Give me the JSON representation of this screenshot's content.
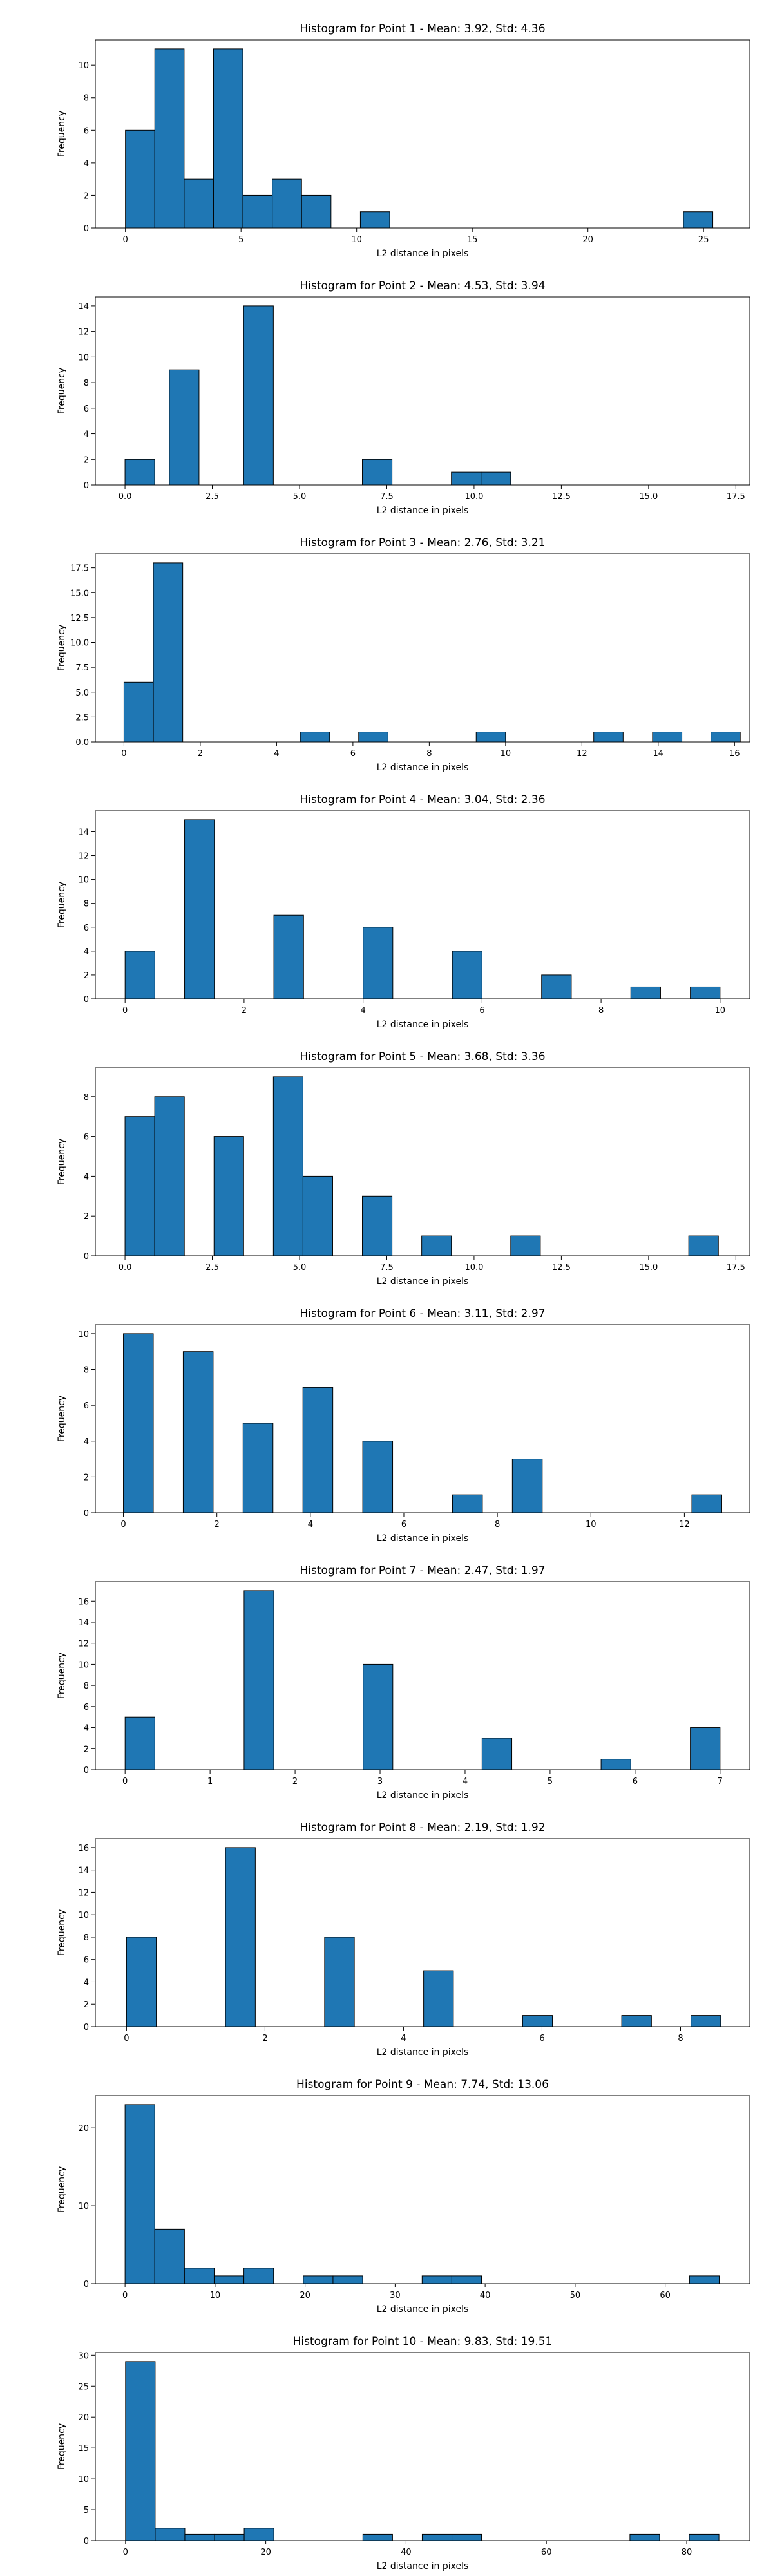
{
  "chart_data": [
    {
      "type": "bar",
      "title": "Histogram for Point 1 - Mean: 3.92, Std: 4.36",
      "xlabel": "L2 distance in pixels",
      "ylabel": "Frequency",
      "bar_color": "#1f77b4",
      "edge_color": "#000000",
      "xlim": [
        -1.3,
        27.0
      ],
      "ylim": [
        0,
        11.55
      ],
      "xticks": [
        0,
        5,
        10,
        15,
        20,
        25
      ],
      "xtick_labels": [
        "0",
        "5",
        "10",
        "15",
        "20",
        "25"
      ],
      "yticks": [
        0,
        2,
        4,
        6,
        8,
        10
      ],
      "ytick_labels": [
        "0",
        "2",
        "4",
        "6",
        "8",
        "10"
      ],
      "bin_width": 1.27,
      "bins": [
        [
          0,
          6
        ],
        [
          1.27,
          11
        ],
        [
          2.54,
          3
        ],
        [
          3.81,
          11
        ],
        [
          5.08,
          2
        ],
        [
          6.35,
          3
        ],
        [
          7.62,
          2
        ],
        [
          10.16,
          1
        ],
        [
          24.13,
          1
        ]
      ]
    },
    {
      "type": "bar",
      "title": "Histogram for Point 2 - Mean: 4.53, Std: 3.94",
      "xlabel": "L2 distance in pixels",
      "ylabel": "Frequency",
      "bar_color": "#1f77b4",
      "edge_color": "#000000",
      "xlim": [
        -0.85,
        17.9
      ],
      "ylim": [
        0,
        14.7
      ],
      "xticks": [
        0,
        2.5,
        5,
        7.5,
        10,
        12.5,
        15,
        17.5
      ],
      "xtick_labels": [
        "0.0",
        "2.5",
        "5.0",
        "7.5",
        "10.0",
        "12.5",
        "15.0",
        "17.5"
      ],
      "yticks": [
        0,
        2,
        4,
        6,
        8,
        10,
        12,
        14
      ],
      "ytick_labels": [
        "0",
        "2",
        "4",
        "6",
        "8",
        "10",
        "12",
        "14"
      ],
      "bin_width": 0.85,
      "bins": [
        [
          0,
          2
        ],
        [
          1.27,
          9
        ],
        [
          3.4,
          14
        ],
        [
          6.8,
          2
        ],
        [
          9.35,
          1
        ],
        [
          10.2,
          1
        ]
      ]
    },
    {
      "type": "bar",
      "title": "Histogram for Point 3 - Mean: 2.76, Std: 3.21",
      "xlabel": "L2 distance in pixels",
      "ylabel": "Frequency",
      "bar_color": "#1f77b4",
      "edge_color": "#000000",
      "xlim": [
        -0.75,
        16.4
      ],
      "ylim": [
        0,
        18.9
      ],
      "xticks": [
        0,
        2,
        4,
        6,
        8,
        10,
        12,
        14,
        16
      ],
      "xtick_labels": [
        "0",
        "2",
        "4",
        "6",
        "8",
        "10",
        "12",
        "14",
        "16"
      ],
      "yticks": [
        0,
        2.5,
        5,
        7.5,
        10,
        12.5,
        15,
        17.5
      ],
      "ytick_labels": [
        "0.0",
        "2.5",
        "5.0",
        "7.5",
        "10.0",
        "12.5",
        "15.0",
        "17.5"
      ],
      "bin_width": 0.77,
      "bins": [
        [
          0,
          6
        ],
        [
          0.77,
          18
        ],
        [
          4.62,
          1
        ],
        [
          6.15,
          1
        ],
        [
          9.23,
          1
        ],
        [
          12.31,
          1
        ],
        [
          13.85,
          1
        ],
        [
          15.38,
          1
        ]
      ]
    },
    {
      "type": "bar",
      "title": "Histogram for Point 4 - Mean: 3.04, Std: 2.36",
      "xlabel": "L2 distance in pixels",
      "ylabel": "Frequency",
      "bar_color": "#1f77b4",
      "edge_color": "#000000",
      "xlim": [
        -0.5,
        10.5
      ],
      "ylim": [
        0,
        15.75
      ],
      "xticks": [
        0,
        2,
        4,
        6,
        8,
        10
      ],
      "xtick_labels": [
        "0",
        "2",
        "4",
        "6",
        "8",
        "10"
      ],
      "yticks": [
        0,
        2,
        4,
        6,
        8,
        10,
        12,
        14
      ],
      "ytick_labels": [
        "0",
        "2",
        "4",
        "6",
        "8",
        "10",
        "12",
        "14"
      ],
      "bin_width": 0.5,
      "bins": [
        [
          0,
          4
        ],
        [
          1,
          15
        ],
        [
          2.5,
          7
        ],
        [
          4,
          6
        ],
        [
          5.5,
          4
        ],
        [
          7,
          2
        ],
        [
          8.5,
          1
        ],
        [
          9.5,
          1
        ]
      ]
    },
    {
      "type": "bar",
      "title": "Histogram for Point 5 - Mean: 3.68, Std: 3.36",
      "xlabel": "L2 distance in pixels",
      "ylabel": "Frequency",
      "bar_color": "#1f77b4",
      "edge_color": "#000000",
      "xlim": [
        -0.85,
        17.9
      ],
      "ylim": [
        0,
        9.45
      ],
      "xticks": [
        0,
        2.5,
        5,
        7.5,
        10,
        12.5,
        15,
        17.5
      ],
      "xtick_labels": [
        "0.0",
        "2.5",
        "5.0",
        "7.5",
        "10.0",
        "12.5",
        "15.0",
        "17.5"
      ],
      "yticks": [
        0,
        2,
        4,
        6,
        8
      ],
      "ytick_labels": [
        "0",
        "2",
        "4",
        "6",
        "8"
      ],
      "bin_width": 0.85,
      "bins": [
        [
          0,
          7
        ],
        [
          0.85,
          8
        ],
        [
          2.55,
          6
        ],
        [
          4.25,
          9
        ],
        [
          5.1,
          4
        ],
        [
          6.8,
          3
        ],
        [
          8.5,
          1
        ],
        [
          11.05,
          1
        ],
        [
          16.15,
          1
        ]
      ]
    },
    {
      "type": "bar",
      "title": "Histogram for Point 6 - Mean: 3.11, Std: 2.97",
      "xlabel": "L2 distance in pixels",
      "ylabel": "Frequency",
      "bar_color": "#1f77b4",
      "edge_color": "#000000",
      "xlim": [
        -0.6,
        13.4
      ],
      "ylim": [
        0,
        10.5
      ],
      "xticks": [
        0,
        2,
        4,
        6,
        8,
        10,
        12
      ],
      "xtick_labels": [
        "0",
        "2",
        "4",
        "6",
        "8",
        "10",
        "12"
      ],
      "yticks": [
        0,
        2,
        4,
        6,
        8,
        10
      ],
      "ytick_labels": [
        "0",
        "2",
        "4",
        "6",
        "8",
        "10"
      ],
      "bin_width": 0.64,
      "bins": [
        [
          0,
          10
        ],
        [
          1.28,
          9
        ],
        [
          2.56,
          5
        ],
        [
          3.84,
          7
        ],
        [
          5.12,
          4
        ],
        [
          7.04,
          1
        ],
        [
          8.32,
          3
        ],
        [
          12.16,
          1
        ]
      ]
    },
    {
      "type": "bar",
      "title": "Histogram for Point 7 - Mean: 2.47, Std: 1.97",
      "xlabel": "L2 distance in pixels",
      "ylabel": "Frequency",
      "bar_color": "#1f77b4",
      "edge_color": "#000000",
      "xlim": [
        -0.35,
        7.35
      ],
      "ylim": [
        0,
        17.85
      ],
      "xticks": [
        0,
        1,
        2,
        3,
        4,
        5,
        6,
        7
      ],
      "xtick_labels": [
        "0",
        "1",
        "2",
        "3",
        "4",
        "5",
        "6",
        "7"
      ],
      "yticks": [
        0,
        2,
        4,
        6,
        8,
        10,
        12,
        14,
        16
      ],
      "ytick_labels": [
        "0",
        "2",
        "4",
        "6",
        "8",
        "10",
        "12",
        "14",
        "16"
      ],
      "bin_width": 0.35,
      "bins": [
        [
          0,
          5
        ],
        [
          1.4,
          17
        ],
        [
          2.8,
          10
        ],
        [
          4.2,
          3
        ],
        [
          5.6,
          1
        ],
        [
          6.65,
          4
        ]
      ]
    },
    {
      "type": "bar",
      "title": "Histogram for Point 8 - Mean: 2.19, Std: 1.92",
      "xlabel": "L2 distance in pixels",
      "ylabel": "Frequency",
      "bar_color": "#1f77b4",
      "edge_color": "#000000",
      "xlim": [
        -0.45,
        9.0
      ],
      "ylim": [
        0,
        16.8
      ],
      "xticks": [
        0,
        2,
        4,
        6,
        8
      ],
      "xtick_labels": [
        "0",
        "2",
        "4",
        "6",
        "8"
      ],
      "yticks": [
        0,
        2,
        4,
        6,
        8,
        10,
        12,
        14,
        16
      ],
      "ytick_labels": [
        "0",
        "2",
        "4",
        "6",
        "8",
        "10",
        "12",
        "14",
        "16"
      ],
      "bin_width": 0.43,
      "bins": [
        [
          0,
          8
        ],
        [
          1.43,
          16
        ],
        [
          2.86,
          8
        ],
        [
          4.29,
          5
        ],
        [
          5.72,
          1
        ],
        [
          7.15,
          1
        ],
        [
          8.15,
          1
        ]
      ]
    },
    {
      "type": "bar",
      "title": "Histogram for Point 9 - Mean: 7.74, Std: 13.06",
      "xlabel": "L2 distance in pixels",
      "ylabel": "Frequency",
      "bar_color": "#1f77b4",
      "edge_color": "#000000",
      "xlim": [
        -3.3,
        69.4
      ],
      "ylim": [
        0,
        24.15
      ],
      "xticks": [
        0,
        10,
        20,
        30,
        40,
        50,
        60
      ],
      "xtick_labels": [
        "0",
        "10",
        "20",
        "30",
        "40",
        "50",
        "60"
      ],
      "yticks": [
        0,
        10,
        20
      ],
      "ytick_labels": [
        "0",
        "10",
        "20"
      ],
      "bin_width": 3.3,
      "bins": [
        [
          0,
          23
        ],
        [
          3.3,
          7
        ],
        [
          6.6,
          2
        ],
        [
          9.9,
          1
        ],
        [
          13.2,
          2
        ],
        [
          19.8,
          1
        ],
        [
          23.1,
          1
        ],
        [
          33,
          1
        ],
        [
          36.3,
          1
        ],
        [
          62.7,
          1
        ]
      ]
    },
    {
      "type": "bar",
      "title": "Histogram for Point 10 - Mean: 9.83, Std: 19.51",
      "xlabel": "L2 distance in pixels",
      "ylabel": "Frequency",
      "bar_color": "#1f77b4",
      "edge_color": "#000000",
      "xlim": [
        -4.3,
        89.0
      ],
      "ylim": [
        0,
        30.45
      ],
      "xticks": [
        0,
        20,
        40,
        60,
        80
      ],
      "xtick_labels": [
        "0",
        "20",
        "40",
        "60",
        "80"
      ],
      "yticks": [
        0,
        5,
        10,
        15,
        20,
        25,
        30
      ],
      "ytick_labels": [
        "0",
        "5",
        "10",
        "15",
        "20",
        "25",
        "30"
      ],
      "bin_width": 4.23,
      "bins": [
        [
          0,
          29
        ],
        [
          4.23,
          2
        ],
        [
          8.46,
          1
        ],
        [
          12.69,
          1
        ],
        [
          16.92,
          2
        ],
        [
          33.84,
          1
        ],
        [
          42.3,
          1
        ],
        [
          46.53,
          1
        ],
        [
          71.91,
          1
        ],
        [
          80.37,
          1
        ]
      ]
    }
  ]
}
